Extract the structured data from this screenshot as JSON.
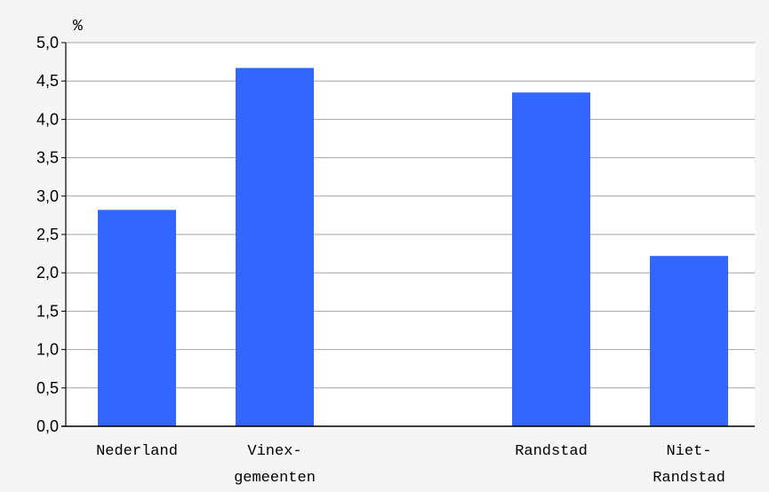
{
  "chart_data": {
    "type": "bar",
    "ylabel": "%",
    "ylim": [
      0,
      5
    ],
    "yticks": [
      "0,0",
      "0,5",
      "1,0",
      "1,5",
      "2,0",
      "2,5",
      "3,0",
      "3,5",
      "4,0",
      "4,5",
      "5,0"
    ],
    "grid": true,
    "legend": "none",
    "categories": [
      [
        "Nederland"
      ],
      [
        "Vinex-",
        "gemeenten"
      ],
      [
        "Randstad"
      ],
      [
        "Niet-",
        "Randstad"
      ]
    ],
    "values": [
      2.82,
      4.67,
      4.35,
      2.22
    ],
    "colors": {
      "bar": "#3366ff",
      "grid": "#a6a6a6",
      "axis": "#000000",
      "plot_background": "#ffffff",
      "page_background": "#f5f5f5"
    }
  }
}
